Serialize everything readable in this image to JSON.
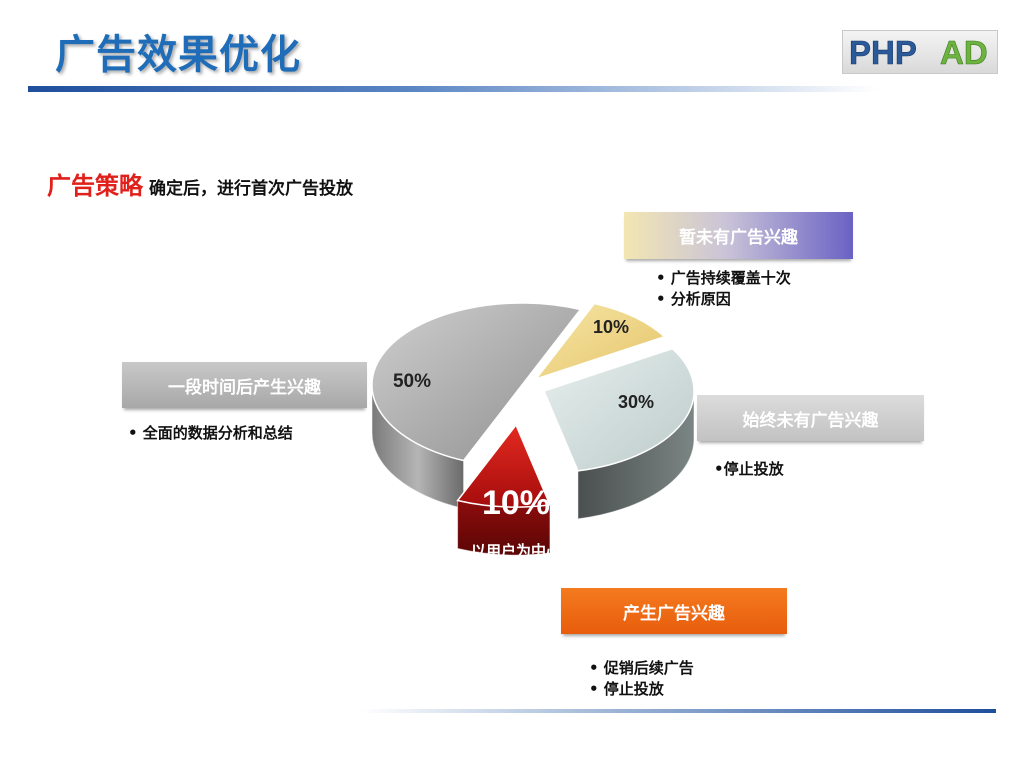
{
  "header": {
    "title": "广告效果优化",
    "logo_text": "PHPAD",
    "logo_colors": {
      "PHP": "#2a5a9a",
      "AD": "#6db33f"
    }
  },
  "strategy": {
    "highlight": "广告策略",
    "text": "确定后，进行首次广告投放"
  },
  "colors": {
    "title": "#1f6db8",
    "highlight": "#e0201b",
    "accent_orange": "#f26b15"
  },
  "banners": {
    "no_interest_yet": "暂未有广告兴趣",
    "later_interest": "一段时间后产生兴趣",
    "never_interest": "始终未有广告兴趣",
    "interest": "产生广告兴趣"
  },
  "bullets": {
    "no_interest_yet": [
      "• 广告持续覆盖十次",
      "• 分析原因"
    ],
    "later_interest": [
      "• 全面的数据分析和总结"
    ],
    "never_interest": [
      "•停止投放"
    ],
    "interest": [
      "• 促销后续广告",
      "• 停止投放"
    ]
  },
  "chart_data": {
    "type": "pie",
    "slices": [
      {
        "label": "",
        "value": 50,
        "text": "50%",
        "color": "#a9a9a9"
      },
      {
        "label": "",
        "value": 10,
        "text": "10%",
        "color": "#f0d98a"
      },
      {
        "label": "",
        "value": 30,
        "text": "30%",
        "color": "#d2dedc"
      },
      {
        "label": "以用户为中心",
        "value": 10,
        "text": "10%",
        "color": "#c81212"
      }
    ],
    "center_label": "以用户为中心"
  }
}
